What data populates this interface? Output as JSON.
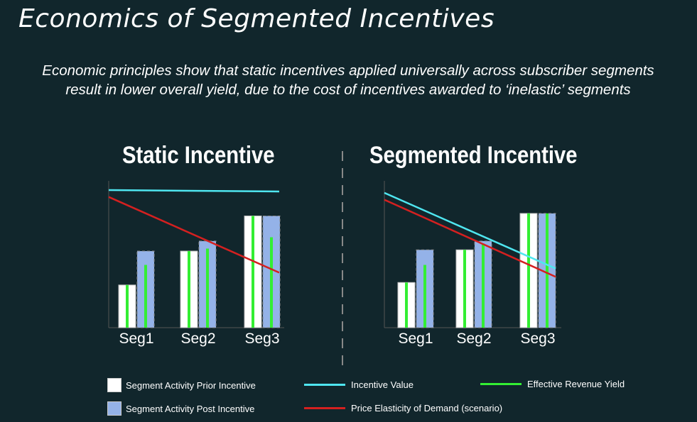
{
  "title": "Economics of Segmented Incentives",
  "subtitle": "Economic principles show that static incentives applied universally across subscriber segments result in lower overall yield, due to the cost of incentives awarded to ‘inelastic’ segments",
  "colors": {
    "background": "#11262c",
    "prior": "#ffffff",
    "post": "#94b2e8",
    "incentive": "#4fe6f0",
    "yield": "#33ee33",
    "elasticity": "#d42020"
  },
  "legend": {
    "prior": "Segment Activity Prior Incentive",
    "post": "Segment Activity Post Incentive",
    "incentive": "Incentive Value",
    "elasticity": "Price Elasticity of Demand (scenario)",
    "yield": "Effective Revenue Yield"
  },
  "chart_data": [
    {
      "type": "bar",
      "title": "Static Incentive",
      "categories": [
        "Seg1",
        "Seg2",
        "Seg3"
      ],
      "ylim": [
        0,
        100
      ],
      "series": [
        {
          "name": "Segment Activity Prior Incentive",
          "values": [
            34,
            61,
            89
          ]
        },
        {
          "name": "Segment Activity Post Incentive",
          "values": [
            61,
            69,
            89
          ]
        },
        {
          "name": "Effective Revenue Yield",
          "values": [
            34,
            61,
            89
          ]
        },
        {
          "name": "Effective Revenue Yield",
          "values": [
            50,
            63,
            72
          ]
        }
      ],
      "lines": [
        {
          "name": "Incentive Value",
          "y": [
            100,
            99
          ]
        },
        {
          "name": "Price Elasticity of Demand (scenario)",
          "y": [
            95,
            40
          ]
        }
      ]
    },
    {
      "type": "bar",
      "title": "Segmented Incentive",
      "categories": [
        "Seg1",
        "Seg2",
        "Seg3"
      ],
      "ylim": [
        0,
        100
      ],
      "series": [
        {
          "name": "Segment Activity Prior Incentive",
          "values": [
            36,
            62,
            91
          ]
        },
        {
          "name": "Segment Activity Post Incentive",
          "values": [
            62,
            69,
            91
          ]
        },
        {
          "name": "Effective Revenue Yield",
          "values": [
            36,
            62,
            91
          ]
        },
        {
          "name": "Effective Revenue Yield",
          "values": [
            50,
            67,
            91
          ]
        }
      ],
      "lines": [
        {
          "name": "Incentive Value",
          "y": [
            98,
            43
          ]
        },
        {
          "name": "Price Elasticity of Demand (scenario)",
          "y": [
            93,
            37
          ]
        }
      ]
    }
  ]
}
